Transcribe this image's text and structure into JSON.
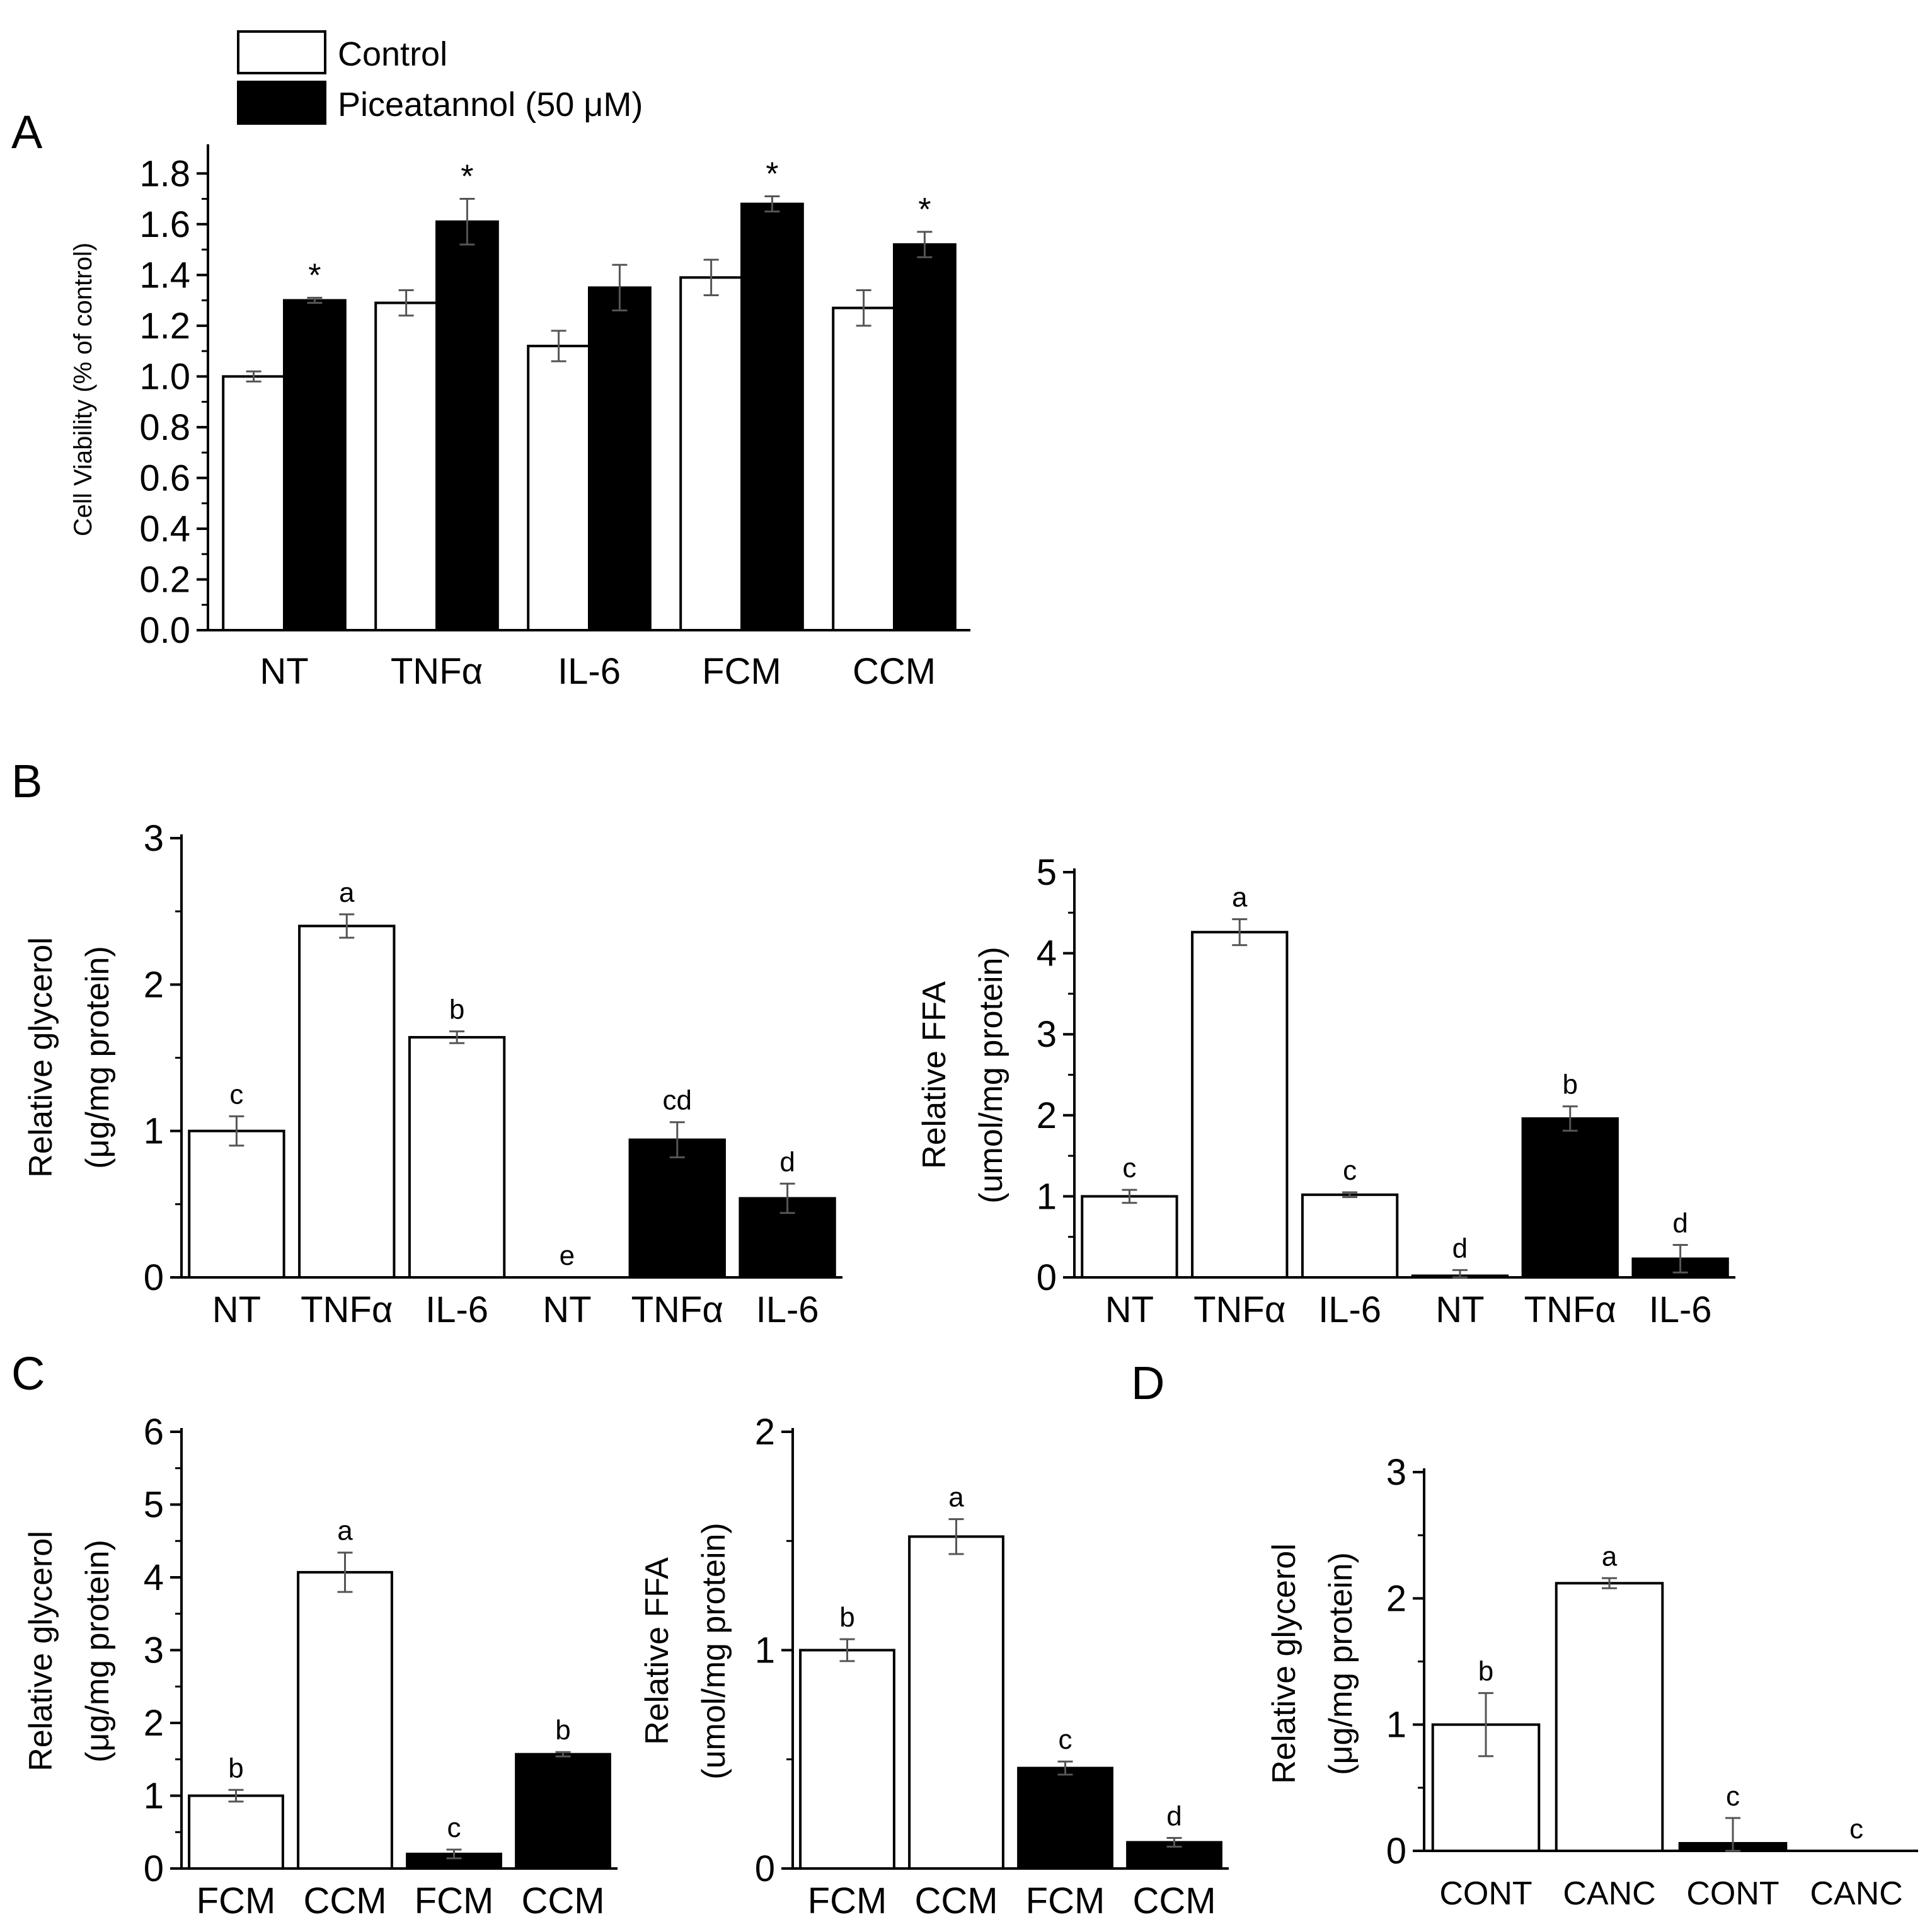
{
  "colors": {
    "control": "#ffffff",
    "treated": "#000000",
    "stroke": "#000000"
  },
  "legend": {
    "control_label": "Control",
    "treated_label": "Piceatannol (50 μM)"
  },
  "chart_data": [
    {
      "id": "A",
      "type": "bar",
      "panel_label": "A",
      "title": "",
      "xlabel": "",
      "ylabel": "Cell Viability (% of control)",
      "ylim": [
        0,
        1.9
      ],
      "yticks": [
        0.0,
        0.2,
        0.4,
        0.6,
        0.8,
        1.0,
        1.2,
        1.4,
        1.6,
        1.8
      ],
      "ytick_labels": [
        "0.0",
        "0.2",
        "0.4",
        "0.6",
        "0.8",
        "1.0",
        "1.2",
        "1.4",
        "1.6",
        "1.8"
      ],
      "categories": [
        "NT",
        "TNFα",
        "IL-6",
        "FCM",
        "CCM"
      ],
      "series": [
        {
          "name": "Control",
          "fill": "control",
          "values": [
            1.0,
            1.29,
            1.12,
            1.39,
            1.27
          ],
          "errors": [
            0.02,
            0.05,
            0.06,
            0.07,
            0.07
          ],
          "annotations": [
            "",
            "",
            "",
            "",
            ""
          ]
        },
        {
          "name": "Piceatannol (50 μM)",
          "fill": "treated",
          "values": [
            1.3,
            1.61,
            1.35,
            1.68,
            1.52
          ],
          "errors": [
            0.01,
            0.09,
            0.09,
            0.03,
            0.05
          ],
          "annotations": [
            "*",
            "*",
            "",
            "*",
            "*"
          ]
        }
      ]
    },
    {
      "id": "B1",
      "type": "bar",
      "panel_label": "B",
      "title": "",
      "xlabel": "",
      "ylabel": "Relative glycerol",
      "ylabel2": "(μg/mg protein)",
      "ylim": [
        0,
        3
      ],
      "yticks": [
        0,
        1,
        2,
        3
      ],
      "ytick_labels": [
        "0",
        "1",
        "2",
        "3"
      ],
      "bars": [
        {
          "category": "NT",
          "fill": "control",
          "value": 1.0,
          "error": 0.1,
          "annotation": "c"
        },
        {
          "category": "TNFα",
          "fill": "control",
          "value": 2.4,
          "error": 0.08,
          "annotation": "a"
        },
        {
          "category": "IL-6",
          "fill": "control",
          "value": 1.64,
          "error": 0.04,
          "annotation": "b"
        },
        {
          "category": "NT",
          "fill": "treated",
          "value": 0.0,
          "error": 0.0,
          "annotation": "e"
        },
        {
          "category": "TNFα",
          "fill": "treated",
          "value": 0.94,
          "error": 0.12,
          "annotation": "cd"
        },
        {
          "category": "IL-6",
          "fill": "treated",
          "value": 0.54,
          "error": 0.1,
          "annotation": "d"
        }
      ]
    },
    {
      "id": "B2",
      "type": "bar",
      "panel_label": "",
      "title": "",
      "xlabel": "",
      "ylabel": "Relative FFA",
      "ylabel2": "(umol/mg protein)",
      "ylim": [
        0,
        5
      ],
      "yticks": [
        0,
        1,
        2,
        3,
        4,
        5
      ],
      "ytick_labels": [
        "0",
        "1",
        "2",
        "3",
        "4",
        "5"
      ],
      "bars": [
        {
          "category": "NT",
          "fill": "control",
          "value": 1.0,
          "error": 0.08,
          "annotation": "c"
        },
        {
          "category": "TNFα",
          "fill": "control",
          "value": 4.26,
          "error": 0.16,
          "annotation": "a"
        },
        {
          "category": "IL-6",
          "fill": "control",
          "value": 1.02,
          "error": 0.03,
          "annotation": "c"
        },
        {
          "category": "NT",
          "fill": "treated",
          "value": 0.02,
          "error": 0.07,
          "annotation": "d"
        },
        {
          "category": "TNFα",
          "fill": "treated",
          "value": 1.96,
          "error": 0.15,
          "annotation": "b"
        },
        {
          "category": "IL-6",
          "fill": "treated",
          "value": 0.23,
          "error": 0.17,
          "annotation": "d"
        }
      ]
    },
    {
      "id": "C1",
      "type": "bar",
      "panel_label": "C",
      "title": "",
      "xlabel": "",
      "ylabel": "Relative glycerol",
      "ylabel2": "(μg/mg protein)",
      "ylim": [
        0,
        6
      ],
      "yticks": [
        0,
        1,
        2,
        3,
        4,
        5,
        6
      ],
      "ytick_labels": [
        "0",
        "1",
        "2",
        "3",
        "4",
        "5",
        "6"
      ],
      "bars": [
        {
          "category": "FCM",
          "fill": "control",
          "value": 1.0,
          "error": 0.08,
          "annotation": "b"
        },
        {
          "category": "CCM",
          "fill": "control",
          "value": 4.07,
          "error": 0.27,
          "annotation": "a"
        },
        {
          "category": "FCM",
          "fill": "treated",
          "value": 0.2,
          "error": 0.06,
          "annotation": "c"
        },
        {
          "category": "CCM",
          "fill": "treated",
          "value": 1.57,
          "error": 0.03,
          "annotation": "b"
        }
      ]
    },
    {
      "id": "C2",
      "type": "bar",
      "panel_label": "",
      "title": "",
      "xlabel": "",
      "ylabel": "Relative FFA",
      "ylabel2": "(umol/mg protein)",
      "ylim": [
        0,
        2
      ],
      "yticks": [
        0,
        1,
        2
      ],
      "ytick_labels": [
        "0",
        "1",
        "2"
      ],
      "bars": [
        {
          "category": "FCM",
          "fill": "control",
          "value": 1.0,
          "error": 0.05,
          "annotation": "b"
        },
        {
          "category": "CCM",
          "fill": "control",
          "value": 1.52,
          "error": 0.08,
          "annotation": "a"
        },
        {
          "category": "FCM",
          "fill": "treated",
          "value": 0.46,
          "error": 0.03,
          "annotation": "c"
        },
        {
          "category": "CCM",
          "fill": "treated",
          "value": 0.12,
          "error": 0.02,
          "annotation": "d"
        }
      ]
    },
    {
      "id": "D",
      "type": "bar",
      "panel_label": "D",
      "title": "",
      "xlabel": "",
      "ylabel": "Relative glycerol",
      "ylabel2": "(μg/mg protein)",
      "ylim": [
        0,
        3
      ],
      "yticks": [
        0,
        1,
        2,
        3
      ],
      "ytick_labels": [
        "0",
        "1",
        "2",
        "3"
      ],
      "bars": [
        {
          "category": "CONT",
          "fill": "control",
          "value": 1.0,
          "error": 0.25,
          "annotation": "b"
        },
        {
          "category": "CANC",
          "fill": "control",
          "value": 2.12,
          "error": 0.04,
          "annotation": "a"
        },
        {
          "category": "CONT",
          "fill": "treated",
          "value": 0.06,
          "error": 0.2,
          "annotation": "c"
        },
        {
          "category": "CANC",
          "fill": "treated",
          "value": 0.0,
          "error": 0.0,
          "annotation": "c"
        }
      ]
    }
  ]
}
